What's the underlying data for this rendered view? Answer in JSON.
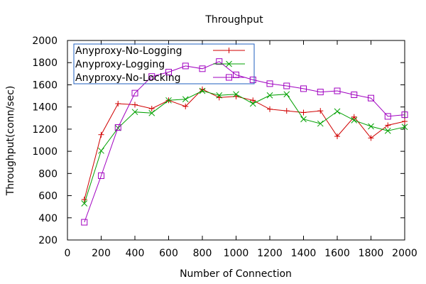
{
  "chart_data": {
    "type": "line",
    "title": "Throughput",
    "xlabel": "Number of Connection",
    "ylabel": "Throughput(conn/sec)",
    "xlim": [
      0,
      2000
    ],
    "ylim": [
      200,
      2000
    ],
    "xticks": [
      0,
      200,
      400,
      600,
      800,
      1000,
      1200,
      1400,
      1600,
      1800,
      2000
    ],
    "yticks": [
      200,
      400,
      600,
      800,
      1000,
      1200,
      1400,
      1600,
      1800,
      2000
    ],
    "grid": false,
    "legend_position": "top-left",
    "x": [
      100,
      200,
      300,
      400,
      500,
      600,
      700,
      800,
      900,
      1000,
      1100,
      1200,
      1300,
      1400,
      1500,
      1600,
      1700,
      1800,
      1900,
      2000
    ],
    "series": [
      {
        "name": "Anyproxy-No-Logging",
        "color": "#d00000",
        "marker": "plus",
        "values": [
          565,
          1150,
          1430,
          1420,
          1385,
          1460,
          1405,
          1560,
          1485,
          1495,
          1460,
          1380,
          1365,
          1350,
          1365,
          1135,
          1310,
          1120,
          1235,
          1270
        ]
      },
      {
        "name": "Anyproxy-Logging",
        "color": "#00a000",
        "marker": "cross",
        "values": [
          530,
          1005,
          1210,
          1355,
          1345,
          1460,
          1470,
          1545,
          1505,
          1515,
          1430,
          1505,
          1515,
          1290,
          1250,
          1360,
          1280,
          1225,
          1185,
          1220
        ]
      },
      {
        "name": "Anyproxy-No-Locking",
        "color": "#a000c0",
        "marker": "square",
        "values": [
          360,
          780,
          1215,
          1525,
          1675,
          1715,
          1770,
          1745,
          1810,
          1690,
          1645,
          1610,
          1590,
          1565,
          1535,
          1545,
          1510,
          1480,
          1315,
          1330
        ]
      }
    ]
  }
}
